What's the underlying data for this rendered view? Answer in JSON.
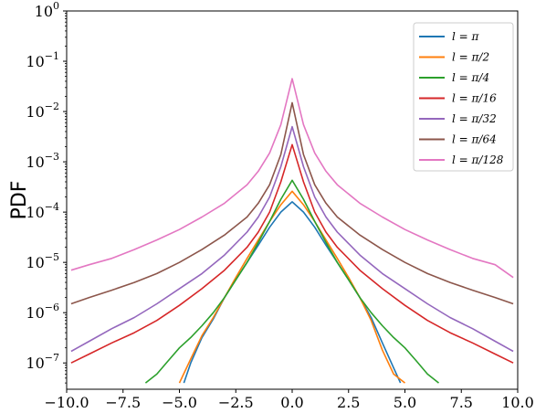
{
  "chart_data": {
    "type": "line",
    "title": "",
    "xlabel": "",
    "ylabel": "PDF",
    "x_scale": "linear",
    "y_scale": "log",
    "xlim": [
      -10,
      10
    ],
    "ylim": [
      3e-08,
      1
    ],
    "x_ticks": [
      -10,
      -7.5,
      -5,
      -2.5,
      0,
      2.5,
      5,
      7.5,
      10
    ],
    "x_tick_labels": [
      "−10.0",
      "−7.5",
      "−5.0",
      "−2.5",
      "0.0",
      "2.5",
      "5.0",
      "7.5",
      "10.0"
    ],
    "y_ticks": [
      {
        "value": 1,
        "base": "10",
        "exp": "0"
      },
      {
        "value": 0.1,
        "base": "10",
        "exp": "−1"
      },
      {
        "value": 0.01,
        "base": "10",
        "exp": "−2"
      },
      {
        "value": 0.001,
        "base": "10",
        "exp": "−3"
      },
      {
        "value": 0.0001,
        "base": "10",
        "exp": "−4"
      },
      {
        "value": 1e-05,
        "base": "10",
        "exp": "−5"
      },
      {
        "value": 1e-06,
        "base": "10",
        "exp": "−6"
      },
      {
        "value": 1e-07,
        "base": "10",
        "exp": "−7"
      }
    ],
    "grid": false,
    "legend_position": "top-right",
    "series": [
      {
        "name": "l = π",
        "color": "#1f77b4",
        "x": [
          -4.8,
          -4.5,
          -4,
          -3.5,
          -3,
          -2.5,
          -2,
          -1.5,
          -1,
          -0.5,
          0,
          0.5,
          1,
          1.5,
          2,
          2.5,
          3,
          3.5,
          4,
          4.5,
          4.8
        ],
        "y": [
          4e-08,
          1e-07,
          3.2e-07,
          7.5e-07,
          2e-06,
          4.5e-06,
          1e-05,
          2.2e-05,
          5e-05,
          0.0001,
          0.00016,
          0.0001,
          5e-05,
          2.2e-05,
          1e-05,
          4.5e-06,
          2e-06,
          8e-07,
          2.5e-07,
          8e-08,
          4e-08
        ]
      },
      {
        "name": "l = π/2",
        "color": "#ff7f0e",
        "x": [
          -5,
          -4.5,
          -4,
          -3.5,
          -3,
          -2.5,
          -2,
          -1.5,
          -1,
          -0.5,
          0,
          0.5,
          1,
          1.5,
          2,
          2.5,
          3,
          3.5,
          4,
          4.5,
          5
        ],
        "y": [
          4e-08,
          1.2e-07,
          3.5e-07,
          8e-07,
          2e-06,
          5e-06,
          1.2e-05,
          2.8e-05,
          6.5e-05,
          0.00014,
          0.00026,
          0.00014,
          6.5e-05,
          2.8e-05,
          1.2e-05,
          5e-06,
          2e-06,
          7e-07,
          1.8e-07,
          6e-08,
          4e-08
        ]
      },
      {
        "name": "l = π/4",
        "color": "#2ca02c",
        "x": [
          -6.5,
          -6,
          -5.5,
          -5,
          -4.5,
          -4,
          -3.5,
          -3,
          -2.5,
          -2,
          -1.5,
          -1,
          -0.5,
          0,
          0.5,
          1,
          1.5,
          2,
          2.5,
          3,
          3.5,
          4,
          4.5,
          5,
          5.5,
          6,
          6.5
        ],
        "y": [
          4e-08,
          6e-08,
          1.1e-07,
          2e-07,
          3.2e-07,
          5.5e-07,
          1e-06,
          2e-06,
          4.5e-06,
          1e-05,
          2.5e-05,
          6.5e-05,
          0.00018,
          0.00043,
          0.00018,
          6.5e-05,
          2.5e-05,
          1e-05,
          4.5e-06,
          2e-06,
          1e-06,
          5.5e-07,
          3.2e-07,
          2e-07,
          1.1e-07,
          6e-08,
          4e-08
        ]
      },
      {
        "name": "l = π/16",
        "color": "#d62728",
        "x": [
          -9.8,
          -9,
          -8,
          -7,
          -6,
          -5,
          -4,
          -3,
          -2,
          -1.5,
          -1,
          -0.5,
          0,
          0.5,
          1,
          1.5,
          2,
          3,
          4,
          5,
          6,
          7,
          8,
          9,
          9.8
        ],
        "y": [
          1e-07,
          1.5e-07,
          2.5e-07,
          4e-07,
          7e-07,
          1.4e-06,
          3e-06,
          7e-06,
          2e-05,
          4e-05,
          0.0001,
          0.0004,
          0.0022,
          0.0004,
          0.0001,
          4e-05,
          2e-05,
          7e-06,
          3e-06,
          1.4e-06,
          7e-07,
          4e-07,
          2.5e-07,
          1.5e-07,
          1e-07
        ]
      },
      {
        "name": "l = π/32",
        "color": "#9467bd",
        "x": [
          -9.8,
          -9,
          -8,
          -7,
          -6,
          -5,
          -4,
          -3,
          -2,
          -1.5,
          -1,
          -0.5,
          0,
          0.5,
          1,
          1.5,
          2,
          3,
          4,
          5,
          6,
          7,
          8,
          9,
          9.8
        ],
        "y": [
          1.7e-07,
          2.7e-07,
          4.8e-07,
          8e-07,
          1.5e-06,
          3e-06,
          6e-06,
          1.4e-05,
          4e-05,
          8e-05,
          0.0002,
          0.0008,
          0.005,
          0.0008,
          0.0002,
          8e-05,
          4e-05,
          1.4e-05,
          6e-06,
          3e-06,
          1.5e-06,
          8e-07,
          4.8e-07,
          2.7e-07,
          1.7e-07
        ]
      },
      {
        "name": "l = π/64",
        "color": "#8c564b",
        "x": [
          -9.8,
          -9,
          -8,
          -7,
          -6,
          -5,
          -4,
          -3,
          -2,
          -1.5,
          -1,
          -0.5,
          0,
          0.5,
          1,
          1.5,
          2,
          3,
          4,
          5,
          6,
          7,
          8,
          9,
          9.8
        ],
        "y": [
          1.5e-06,
          2e-06,
          2.8e-06,
          4e-06,
          6e-06,
          1e-05,
          1.8e-05,
          3.5e-05,
          8e-05,
          0.00015,
          0.00035,
          0.0014,
          0.015,
          0.0014,
          0.00035,
          0.00015,
          8e-05,
          3.5e-05,
          1.8e-05,
          1e-05,
          6e-06,
          4e-06,
          2.8e-06,
          2e-06,
          1.5e-06
        ]
      },
      {
        "name": "l = π/128",
        "color": "#e377c2",
        "x": [
          -9.8,
          -9,
          -8,
          -7,
          -6,
          -5,
          -4,
          -3,
          -2,
          -1.5,
          -1,
          -0.5,
          0,
          0.5,
          1,
          1.5,
          2,
          3,
          4,
          5,
          6,
          7,
          8,
          9,
          9.8
        ],
        "y": [
          7e-06,
          9e-06,
          1.2e-05,
          1.8e-05,
          2.8e-05,
          4.5e-05,
          8e-05,
          0.00015,
          0.00035,
          0.00065,
          0.0015,
          0.0055,
          0.045,
          0.0055,
          0.0015,
          0.00065,
          0.00035,
          0.00015,
          8e-05,
          4.5e-05,
          2.8e-05,
          1.8e-05,
          1.2e-05,
          9e-06,
          5e-06
        ]
      }
    ]
  }
}
